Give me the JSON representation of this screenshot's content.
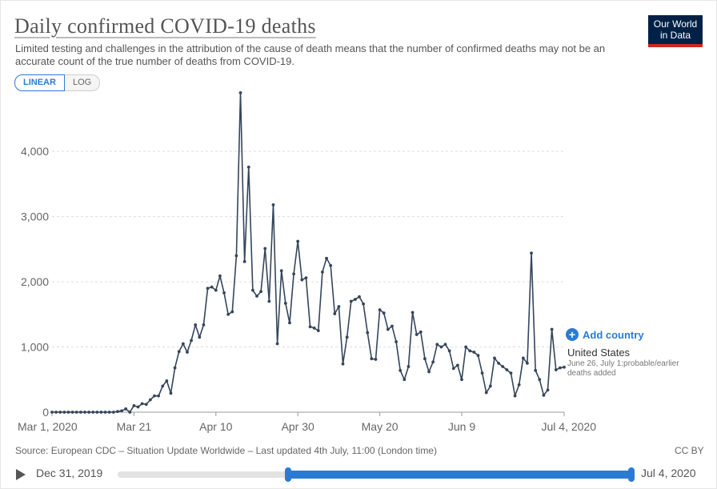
{
  "header": {
    "title": "Daily confirmed COVID-19 deaths",
    "subtitle": "Limited testing and challenges in the attribution of the cause of death means that the number of confirmed deaths may not be an accurate count of the true number of deaths from COVID-19.",
    "scale_linear": "LINEAR",
    "scale_log": "LOG",
    "logo_line1": "Our World",
    "logo_line2": "in Data"
  },
  "legend": {
    "add_country": "Add country",
    "series_name": "United States",
    "note": "June 26, July 1:probable/earlier deaths added"
  },
  "footer": {
    "source": "Source: European CDC – Situation Update Worldwide – Last updated 4th July, 11:00 (London time)",
    "license": "CC BY"
  },
  "timeline": {
    "start": "Dec 31, 2019",
    "end": "Jul 4, 2020"
  },
  "colors": {
    "series": "#35455a",
    "accent": "#2a7bd4",
    "grid": "#dddddd"
  },
  "chart_data": {
    "type": "line",
    "title": "Daily confirmed COVID-19 deaths",
    "ylim": [
      0,
      4800
    ],
    "yticks": [
      0,
      1000,
      2000,
      3000,
      4000
    ],
    "ytick_labels": [
      "0",
      "1,000",
      "2,000",
      "3,000",
      "4,000"
    ],
    "xtick_labels": [
      {
        "day": 0,
        "label": "Mar 1, 2020"
      },
      {
        "day": 20,
        "label": "Mar 21"
      },
      {
        "day": 40,
        "label": "Apr 10"
      },
      {
        "day": 60,
        "label": "Apr 30"
      },
      {
        "day": 80,
        "label": "May 20"
      },
      {
        "day": 100,
        "label": "Jun 9"
      },
      {
        "day": 125,
        "label": "Jul 4, 2020"
      }
    ],
    "series": [
      {
        "name": "United States",
        "start_date": "Mar 1, 2020",
        "values": [
          0,
          0,
          0,
          0,
          0,
          0,
          0,
          0,
          0,
          0,
          0,
          0,
          0,
          0,
          0,
          0,
          10,
          20,
          50,
          0,
          100,
          80,
          130,
          120,
          190,
          250,
          250,
          400,
          480,
          290,
          680,
          930,
          1050,
          920,
          1100,
          1340,
          1150,
          1340,
          1900,
          1920,
          1870,
          2090,
          1830,
          1500,
          1540,
          2400,
          4900,
          2310,
          3760,
          1870,
          1780,
          1850,
          2510,
          1700,
          3180,
          1050,
          2170,
          1670,
          1370,
          2120,
          2620,
          2030,
          2060,
          1310,
          1290,
          1250,
          2150,
          2360,
          2250,
          1510,
          1620,
          740,
          1150,
          1700,
          1730,
          1770,
          1660,
          1220,
          820,
          810,
          1570,
          1520,
          1270,
          1320,
          1080,
          640,
          500,
          700,
          1530,
          1190,
          1230,
          820,
          620,
          770,
          1040,
          1000,
          1040,
          940,
          670,
          720,
          500,
          1000,
          940,
          920,
          870,
          600,
          300,
          400,
          830,
          750,
          700,
          650,
          600,
          250,
          420,
          830,
          750,
          2440,
          640,
          500,
          260,
          340,
          1270,
          650,
          680,
          690
        ]
      }
    ]
  }
}
